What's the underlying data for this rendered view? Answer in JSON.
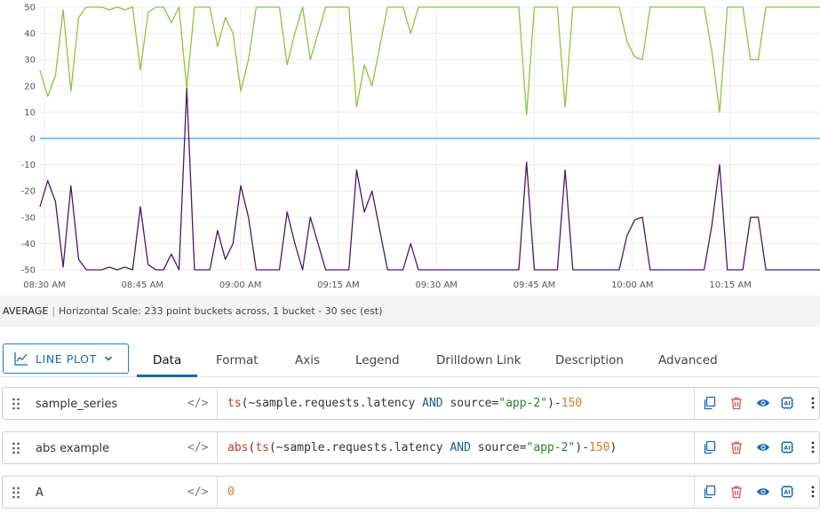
{
  "chart_data": {
    "type": "line",
    "x_tick_labels": [
      "08:30 AM",
      "08:45 AM",
      "09:00 AM",
      "09:15 AM",
      "09:30 AM",
      "09:45 AM",
      "10:00 AM",
      "10:15 AM"
    ],
    "y_tick_labels": [
      "50",
      "40",
      "30",
      "20",
      "10",
      "0",
      "-10",
      "-20",
      "-30",
      "-40",
      "-50"
    ],
    "ylim": [
      -50,
      50
    ],
    "grid": true,
    "series": [
      {
        "color": "#8bc53f",
        "values": [
          26,
          16,
          24,
          49,
          18,
          46,
          50,
          50,
          50,
          49,
          50,
          49,
          50,
          26,
          48,
          50,
          50,
          44,
          50,
          19,
          50,
          50,
          50,
          35,
          46,
          40,
          18,
          30,
          50,
          50,
          50,
          50,
          28,
          40,
          50,
          30,
          40,
          50,
          50,
          50,
          50,
          12,
          28,
          20,
          35,
          50,
          50,
          50,
          40,
          50,
          50,
          50,
          50,
          50,
          50,
          50,
          50,
          50,
          50,
          50,
          50,
          50,
          50,
          9,
          50,
          50,
          50,
          50,
          12,
          50,
          50,
          50,
          50,
          50,
          50,
          50,
          37,
          31,
          30,
          50,
          50,
          50,
          50,
          50,
          50,
          50,
          50,
          33,
          10,
          50,
          50,
          50,
          30,
          30,
          50,
          50,
          50,
          50,
          50,
          50,
          50,
          50
        ]
      },
      {
        "color": "#33a5c4",
        "values": [
          0,
          0
        ]
      },
      {
        "color": "#4b1869",
        "values": [
          -26,
          -16,
          -24,
          -49,
          -18,
          -46,
          -50,
          -50,
          -50,
          -49,
          -50,
          -49,
          -50,
          -26,
          -48,
          -50,
          -50,
          -44,
          -50,
          19,
          -50,
          -50,
          -50,
          -35,
          -46,
          -40,
          -18,
          -30,
          -50,
          -50,
          -50,
          -50,
          -28,
          -40,
          -50,
          -30,
          -40,
          -50,
          -50,
          -50,
          -50,
          -12,
          -28,
          -20,
          -35,
          -50,
          -50,
          -50,
          -40,
          -50,
          -50,
          -50,
          -50,
          -50,
          -50,
          -50,
          -50,
          -50,
          -50,
          -50,
          -50,
          -50,
          -50,
          -9,
          -50,
          -50,
          -50,
          -50,
          -12,
          -50,
          -50,
          -50,
          -50,
          -50,
          -50,
          -50,
          -37,
          -31,
          -30,
          -50,
          -50,
          -50,
          -50,
          -50,
          -50,
          -50,
          -50,
          -33,
          -10,
          -50,
          -50,
          -50,
          -30,
          -30,
          -50,
          -50,
          -50,
          -50,
          -50,
          -50,
          -50,
          -50
        ]
      }
    ]
  },
  "status": {
    "aggregation": "AVERAGE",
    "separator": "|",
    "horizontal_scale": "Horizontal Scale: 233 point buckets across, 1 bucket - 30 sec (est)"
  },
  "toolbar": {
    "plot_type_label": "LINE PLOT",
    "tabs": [
      "Data",
      "Format",
      "Axis",
      "Legend",
      "Drilldown Link",
      "Description",
      "Advanced"
    ],
    "active_tab": "Data"
  },
  "queries": [
    {
      "name": "sample_series",
      "code_icon": "</>",
      "expr_parts": [
        {
          "t": "ts",
          "c": "fn"
        },
        {
          "t": "(~sample.requests.latency ",
          "c": "op"
        },
        {
          "t": "AND",
          "c": "kw"
        },
        {
          "t": " source=",
          "c": "op"
        },
        {
          "t": "\"app-2\"",
          "c": "str"
        },
        {
          "t": ")-",
          "c": "op"
        },
        {
          "t": "150",
          "c": "num"
        }
      ]
    },
    {
      "name": "abs example",
      "code_icon": "</>",
      "expr_parts": [
        {
          "t": "abs",
          "c": "fn"
        },
        {
          "t": "(",
          "c": "op"
        },
        {
          "t": "ts",
          "c": "fn"
        },
        {
          "t": "(~sample.requests.latency ",
          "c": "op"
        },
        {
          "t": "AND",
          "c": "kw"
        },
        {
          "t": " source=",
          "c": "op"
        },
        {
          "t": "\"app-2\"",
          "c": "str"
        },
        {
          "t": ")-",
          "c": "op"
        },
        {
          "t": "150",
          "c": "num"
        },
        {
          "t": ")",
          "c": "op"
        }
      ]
    },
    {
      "name": "A",
      "code_icon": "</>",
      "expr_parts": [
        {
          "t": "0",
          "c": "num"
        }
      ]
    }
  ],
  "row_actions": [
    "copy-icon",
    "delete-icon",
    "eye-icon",
    "ai-icon",
    "more-vertical-icon"
  ],
  "colors": {
    "accent": "#1769b0",
    "delete": "#d9534f"
  }
}
